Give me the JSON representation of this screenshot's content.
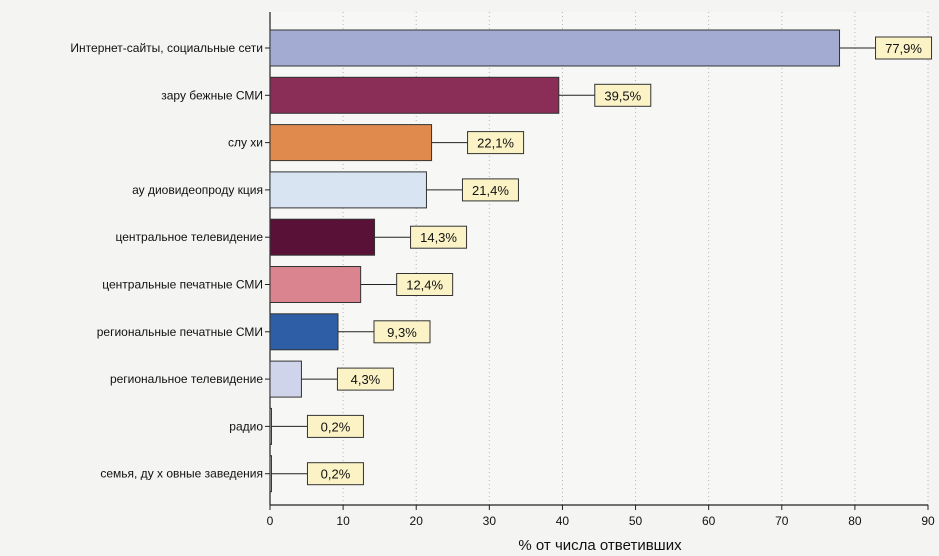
{
  "chart_data": {
    "type": "bar",
    "orientation": "horizontal",
    "title": "",
    "xlabel": "% от числа ответивших",
    "ylabel": "",
    "xlim": [
      0,
      90
    ],
    "xticks": [
      0,
      10,
      20,
      30,
      40,
      50,
      60,
      70,
      80,
      90
    ],
    "grid": "vertical dotted",
    "categories": [
      "Интернет-сайты, социальные сети",
      "зару бежные СМИ",
      "слу хи",
      "ау диовидеопроду кция",
      "центральное телевидение",
      "центральные печатные СМИ",
      "региональные печатные СМИ",
      "региональное телевидение",
      "радио",
      "семья, ду х овные заведения"
    ],
    "values": [
      77.9,
      39.5,
      22.1,
      21.4,
      14.3,
      12.4,
      9.3,
      4.3,
      0.2,
      0.2
    ],
    "value_labels": [
      "77,9%",
      "39,5%",
      "22,1%",
      "21,4%",
      "14,3%",
      "12,4%",
      "9,3%",
      "4,3%",
      "0,2%",
      "0,2%"
    ],
    "colors": [
      "#a3abd3",
      "#8a2e58",
      "#e08a4e",
      "#d9e4f3",
      "#5a1138",
      "#d9848f",
      "#2e5fa6",
      "#cfd4ea",
      "#cccccc",
      "#cccccc"
    ]
  }
}
